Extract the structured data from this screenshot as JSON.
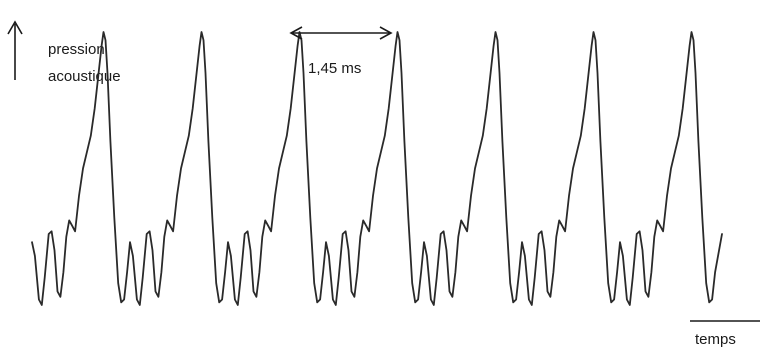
{
  "chart_data": {
    "type": "line",
    "title": "",
    "ylabel_line1": "pression",
    "ylabel_line2": "acoustique",
    "xlabel": "temps",
    "period_label": "1,45 ms",
    "period_ms": 1.45,
    "n_periods": 7,
    "series": [
      {
        "values": "periodic acoustic pressure waveform, period 1.45 ms"
      }
    ]
  }
}
